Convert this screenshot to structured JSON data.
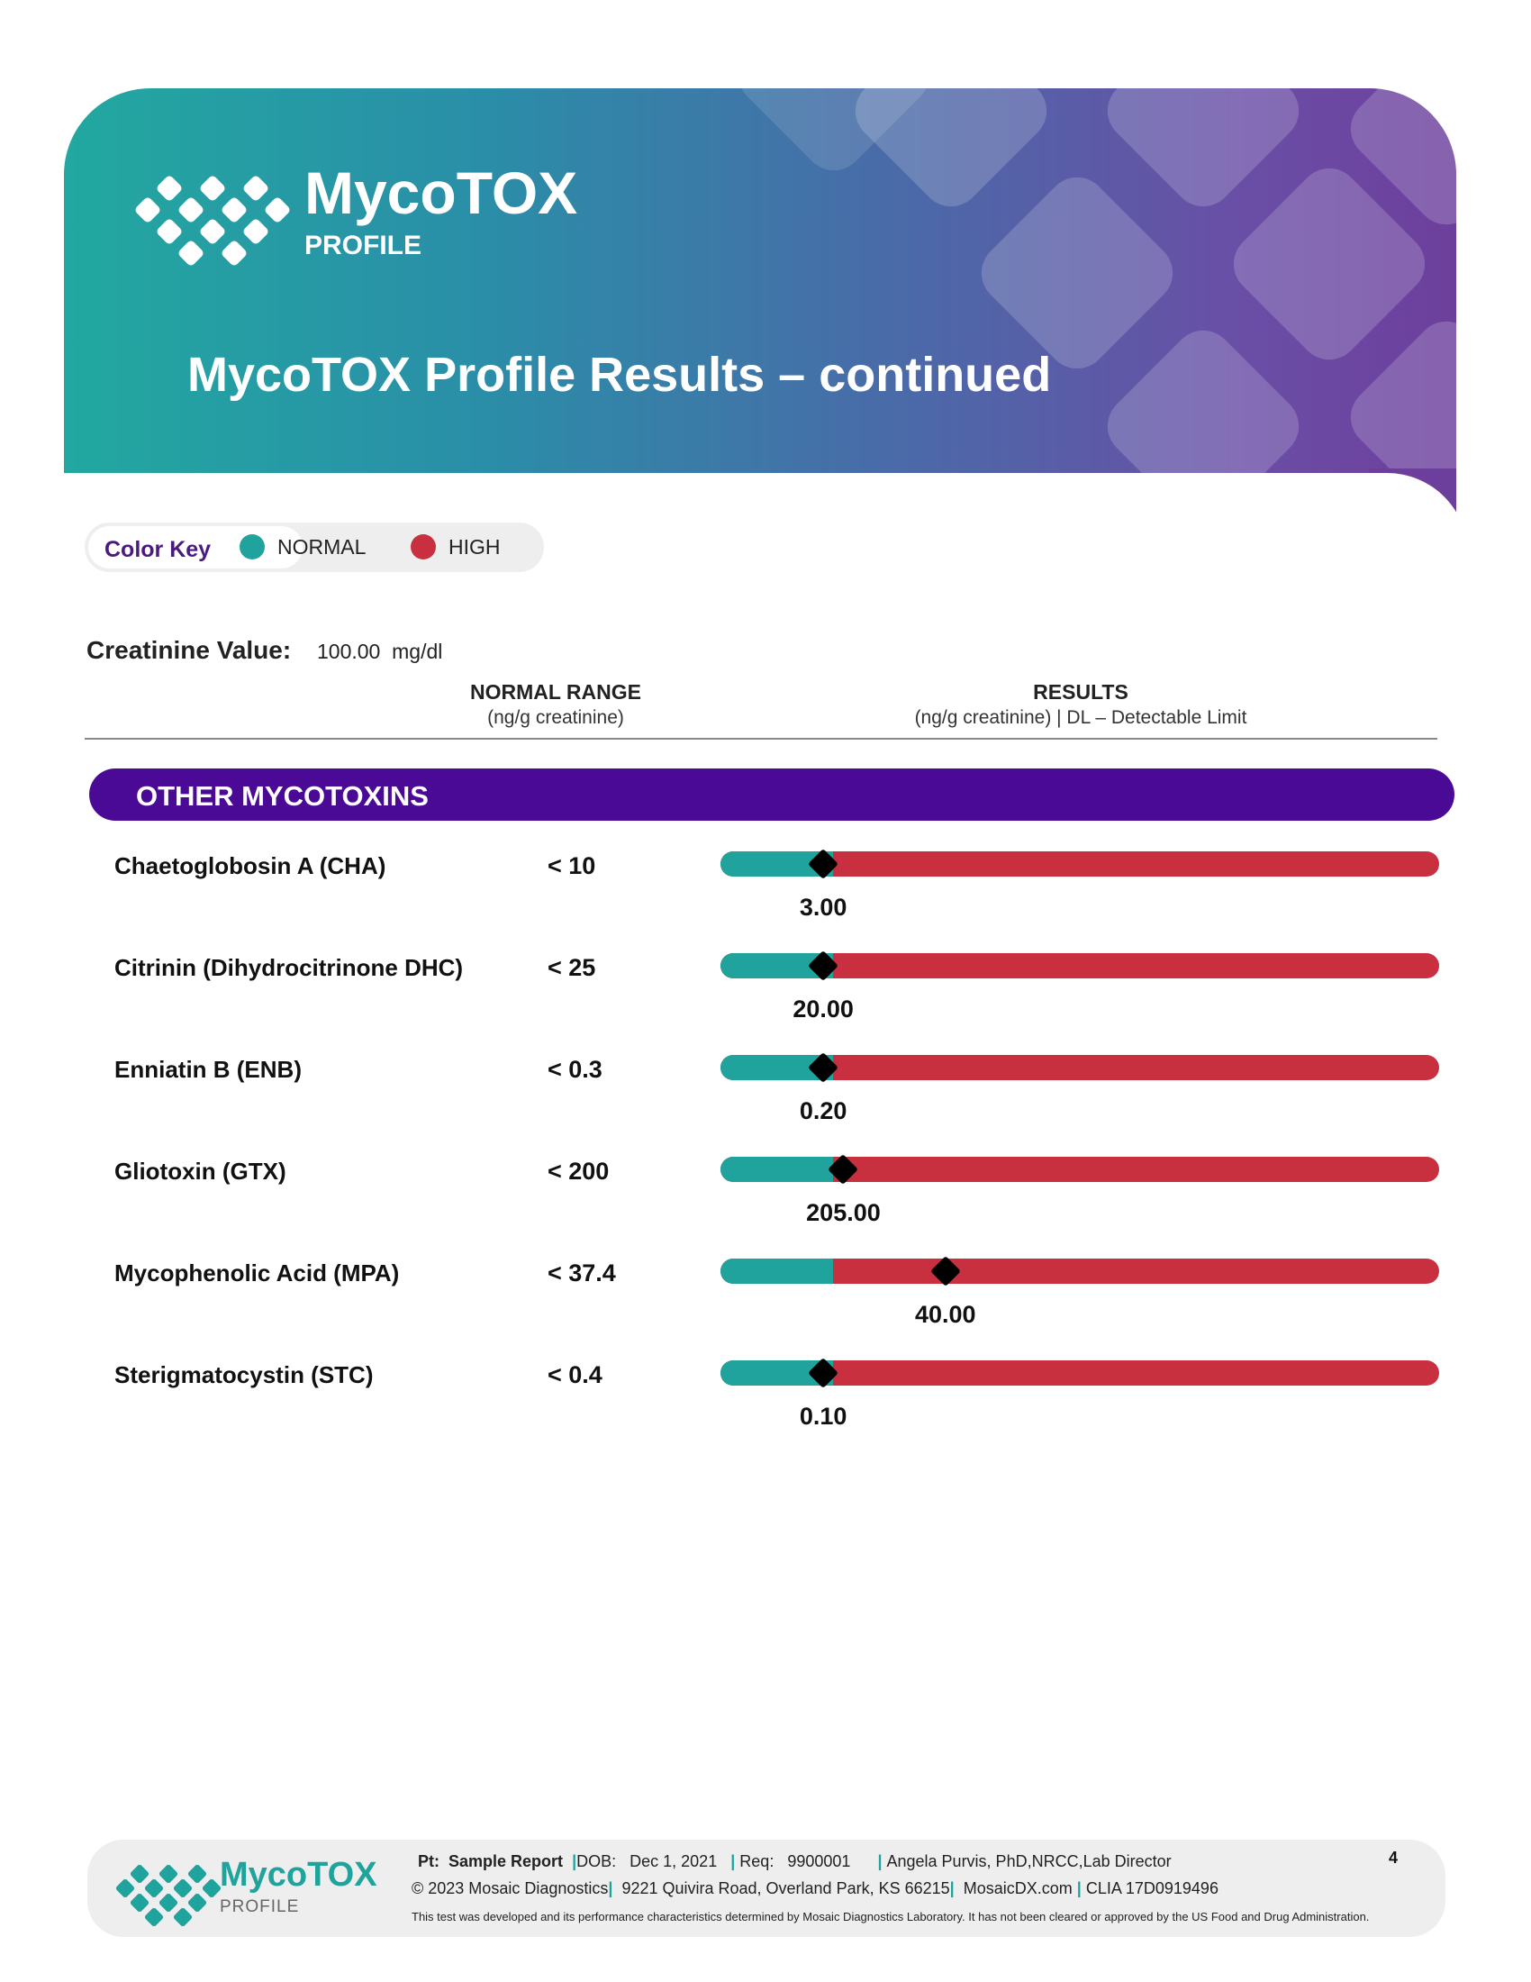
{
  "header": {
    "logo_name": "MycoTOX",
    "logo_sub": "PROFILE",
    "title": "MycoTOX Profile Results – continued"
  },
  "color_key": {
    "title": "Color Key",
    "normal": "NORMAL",
    "high": "HIGH",
    "normal_color": "#1fa39c",
    "high_color": "#c8303f"
  },
  "creatinine": {
    "label": "Creatinine Value:",
    "value": "100.00  mg/dl"
  },
  "columns": {
    "range_head": "NORMAL RANGE",
    "range_sub": "(ng/g creatinine)",
    "results_head": "RESULTS",
    "results_sub": "(ng/g creatinine) | DL – Detectable Limit"
  },
  "section_title": "OTHER MYCOTOXINS",
  "rows": [
    {
      "name": "Chaetoglobosin A (CHA)",
      "range": "< 10",
      "result": "3.00",
      "marker_fraction": 0.143
    },
    {
      "name": "Citrinin (Dihydrocitrinone DHC)",
      "range": "< 25",
      "result": "20.00",
      "marker_fraction": 0.143
    },
    {
      "name": "Enniatin B (ENB)",
      "range": "< 0.3",
      "result": "0.20",
      "marker_fraction": 0.143
    },
    {
      "name": "Gliotoxin (GTX)",
      "range": "< 200",
      "result": "205.00",
      "marker_fraction": 0.171
    },
    {
      "name": "Mycophenolic Acid (MPA)",
      "range": "< 37.4",
      "result": "40.00",
      "marker_fraction": 0.313
    },
    {
      "name": "Sterigmatocystin (STC)",
      "range": "< 0.4",
      "result": "0.10",
      "marker_fraction": 0.143
    }
  ],
  "footer": {
    "logo_name": "MycoTOX",
    "logo_sub": "PROFILE",
    "pt_label": "Pt:",
    "pt_value": "Sample Report",
    "dob_label": "DOB:",
    "dob_value": "Dec 1, 2021",
    "req_label": "Req:",
    "req_value": "9900001",
    "director": "Angela Purvis, PhD,NRCC,Lab Director",
    "copyright": "© 2023 Mosaic Diagnostics",
    "address": "9221 Quivira Road, Overland Park, KS 66215",
    "website": "MosaicDX.com",
    "clia": "CLIA 17D0919496",
    "disclaimer": "This test was developed and its performance characteristics determined by Mosaic Diagnostics Laboratory. It has not been cleared or approved by the US Food and Drug Administration.",
    "page_number": "4"
  }
}
